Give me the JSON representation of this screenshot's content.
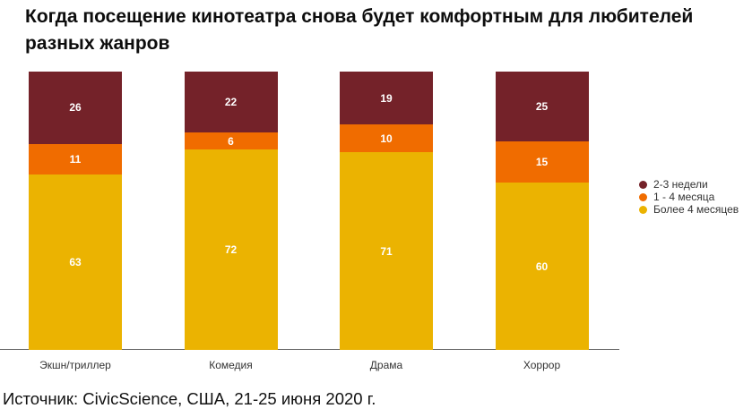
{
  "chart": {
    "title": "Когда посещение кинотеатра снова будет комфортным для любителей разных жанров",
    "source": "Источник: CivicScience, США, 21-25 июня 2020 г."
  },
  "chart_data": {
    "type": "bar",
    "stacked": true,
    "orientation": "vertical",
    "title": "Когда посещение кинотеатра снова будет комфортным для любителей разных жанров",
    "categories": [
      "Экшн/триллер",
      "Комедия",
      "Драма",
      "Хоррор"
    ],
    "series": [
      {
        "name": "2-3 недели",
        "color": "#742229",
        "values": [
          26,
          22,
          19,
          25
        ]
      },
      {
        "name": "1 - 4 месяца",
        "color": "#f06c00",
        "values": [
          11,
          6,
          10,
          15
        ]
      },
      {
        "name": "Более 4 месяцев",
        "color": "#ebb301",
        "values": [
          63,
          72,
          71,
          60
        ]
      }
    ],
    "ylim": [
      0,
      100
    ],
    "grid": false,
    "y_axis_visible": false,
    "legend_position": "right",
    "value_labels": "white numbers centered in each segment",
    "source": "Источник: CivicScience, США, 21-25 июня 2020 г."
  }
}
